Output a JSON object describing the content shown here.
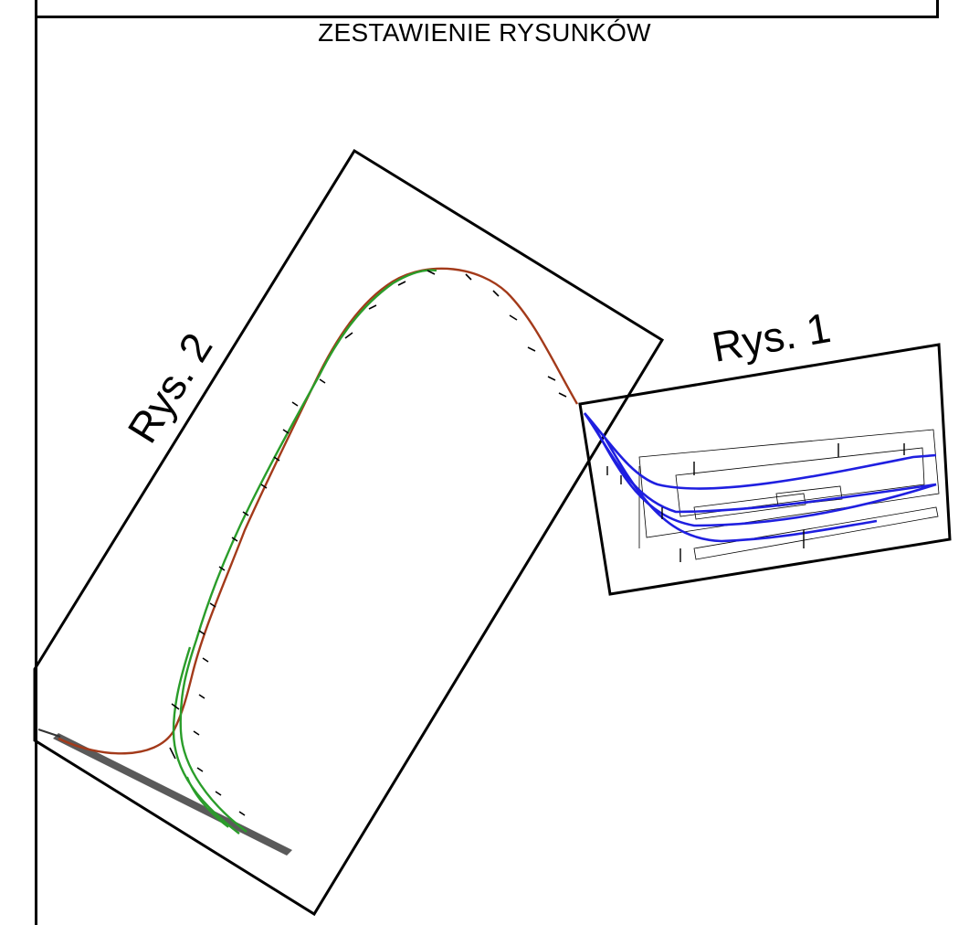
{
  "title": "ZESTAWIENIE RYSUNKÓW",
  "drawings": [
    {
      "label": "Rys. 2"
    },
    {
      "label": "Rys. 1"
    }
  ],
  "colors": {
    "track_main": "#2a9d2a",
    "track_brown": "#a33a1a",
    "track_blue": "#1f1fe0",
    "frame": "#000000",
    "platform": "#5a5a5a"
  }
}
